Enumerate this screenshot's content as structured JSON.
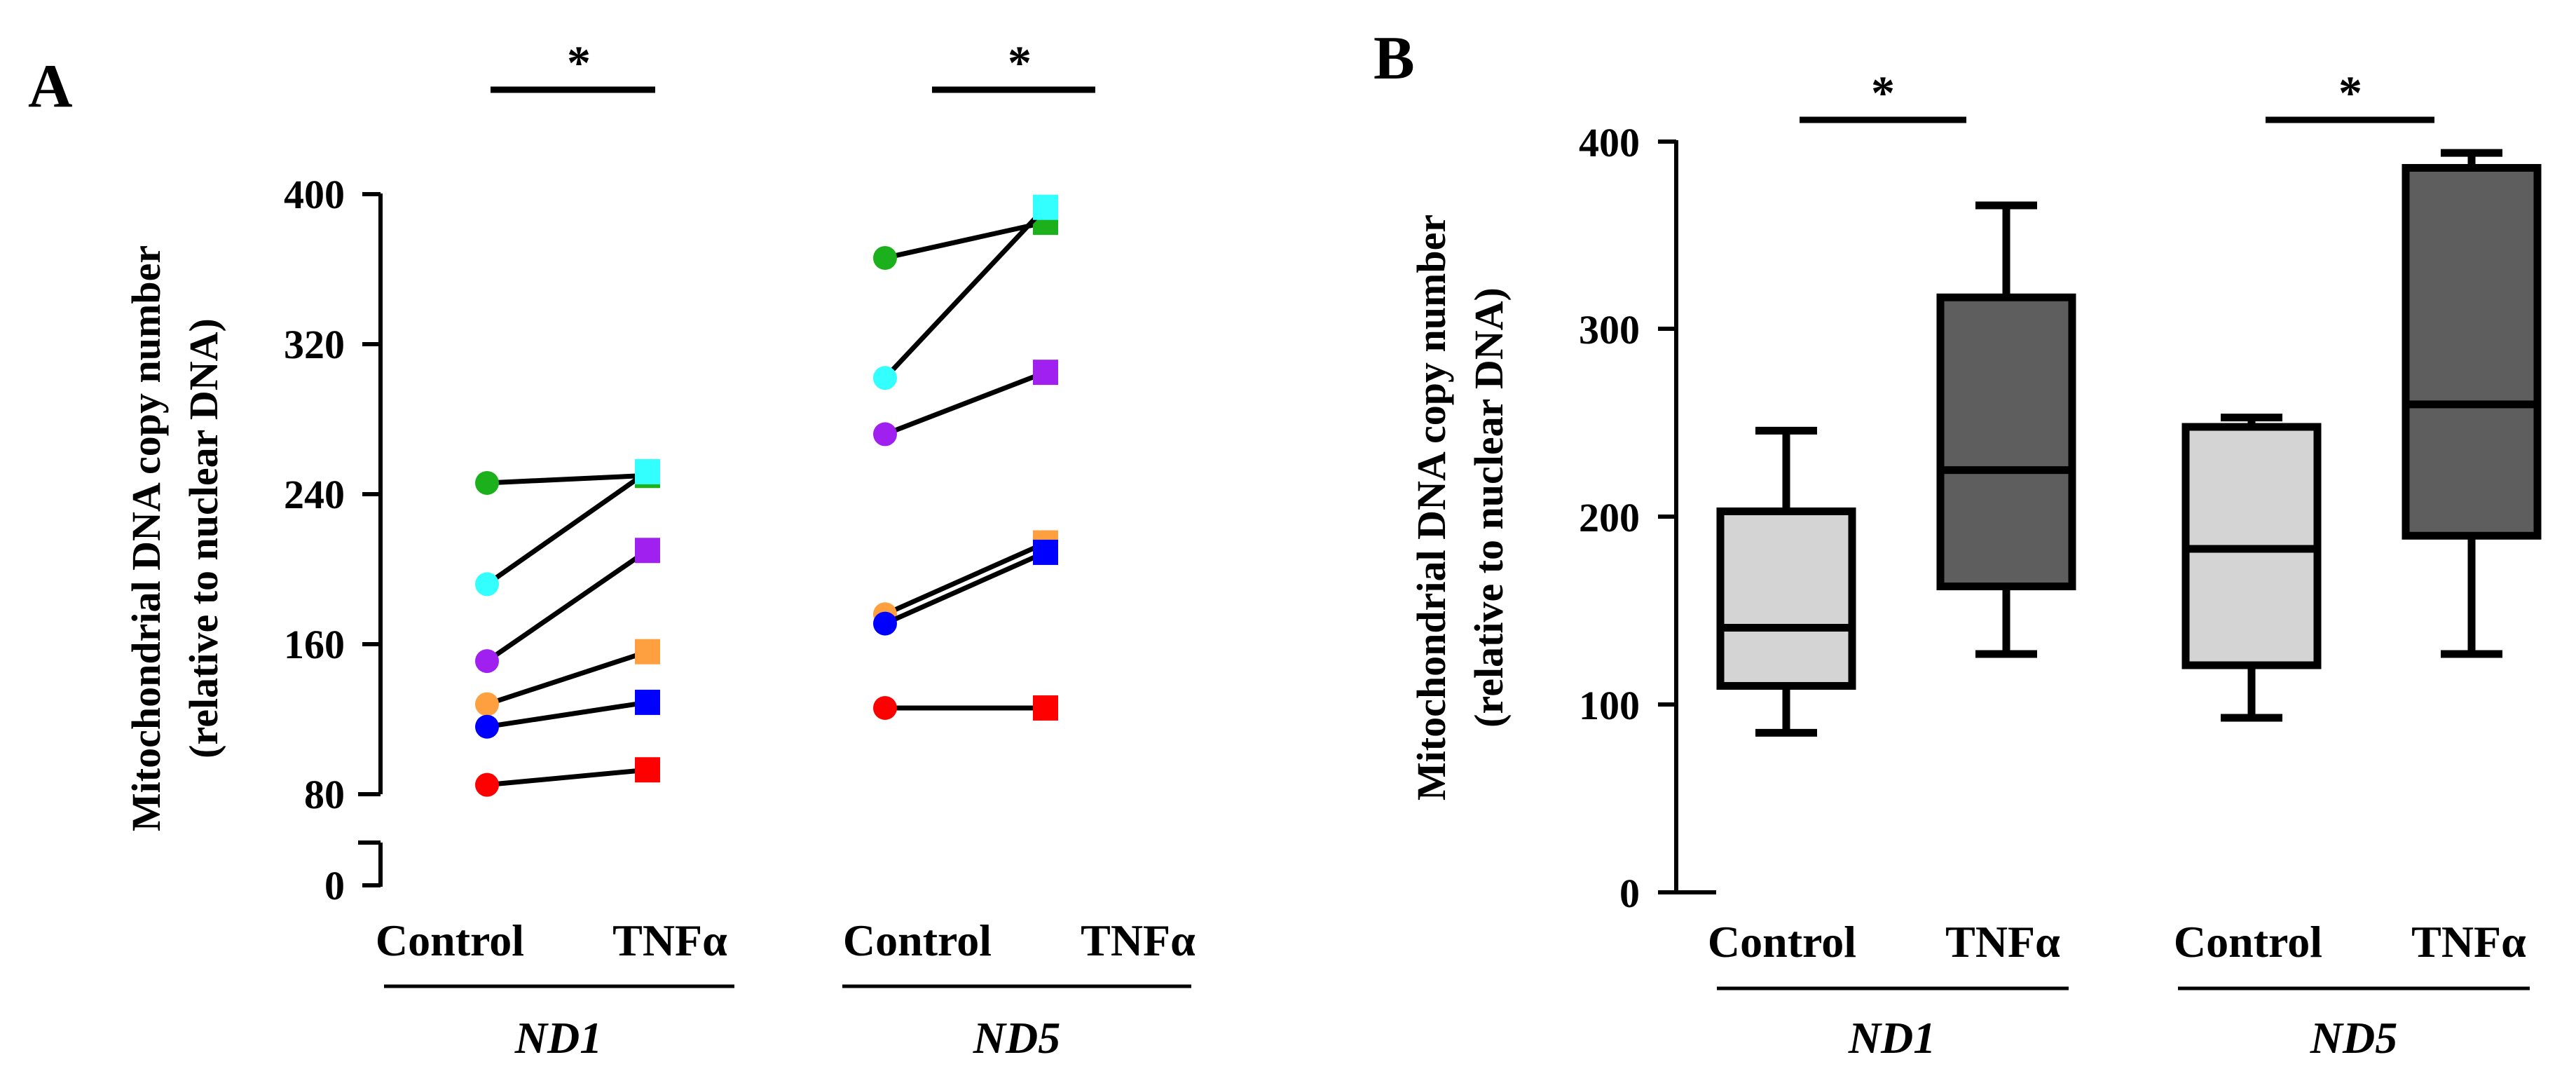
{
  "chart_data": [
    {
      "panel": "A",
      "type": "scatter",
      "subtype": "paired before-after",
      "ylabel_line1": "Mitochondrial DNA copy number",
      "ylabel_line2": "(relative to nuclear DNA)",
      "yticks": [
        "0",
        "80",
        "160",
        "240",
        "320",
        "400"
      ],
      "ylim": [
        80,
        400
      ],
      "y_axis_break": true,
      "groups": [
        {
          "name": "ND1",
          "conditions": [
            "Control",
            "TNFα"
          ],
          "significance": "*",
          "pairs": [
            {
              "color": "#1db01d",
              "control": 246,
              "tnf": 250
            },
            {
              "color": "#33ffff",
              "control": 192,
              "tnf": 252
            },
            {
              "color": "#a020f0",
              "control": 151,
              "tnf": 210
            },
            {
              "color": "#ffa040",
              "control": 128,
              "tnf": 156
            },
            {
              "color": "#0000ff",
              "control": 116,
              "tnf": 129
            },
            {
              "color": "#ff0000",
              "control": 85,
              "tnf": 93
            }
          ]
        },
        {
          "name": "ND5",
          "conditions": [
            "Control",
            "TNFα"
          ],
          "significance": "*",
          "pairs": [
            {
              "color": "#1db01d",
              "control": 366,
              "tnf": 385
            },
            {
              "color": "#33ffff",
              "control": 302,
              "tnf": 393
            },
            {
              "color": "#a020f0",
              "control": 272,
              "tnf": 305
            },
            {
              "color": "#ffa040",
              "control": 176,
              "tnf": 214
            },
            {
              "color": "#0000ff",
              "control": 171,
              "tnf": 209
            },
            {
              "color": "#ff0000",
              "control": 126,
              "tnf": 126
            }
          ]
        }
      ]
    },
    {
      "panel": "B",
      "type": "box",
      "ylabel_line1": "Mitochondrial DNA copy number",
      "ylabel_line2": "(relative to nuclear DNA)",
      "yticks": [
        "0",
        "100",
        "200",
        "300",
        "400"
      ],
      "ylim": [
        0,
        400
      ],
      "groups": [
        {
          "name": "ND1",
          "significance": "*",
          "boxes": [
            {
              "label": "Control",
              "fill": "#d4d4d4",
              "min": 85,
              "q1": 110,
              "median": 141,
              "q3": 203,
              "max": 246
            },
            {
              "label": "TNFα",
              "fill": "#5e5e5e",
              "min": 127,
              "q1": 163,
              "median": 225,
              "q3": 317,
              "max": 366
            }
          ]
        },
        {
          "name": "ND5",
          "significance": "*",
          "boxes": [
            {
              "label": "Control",
              "fill": "#d4d4d4",
              "min": 93,
              "q1": 121,
              "median": 183,
              "q3": 248,
              "max": 253
            },
            {
              "label": "TNFα",
              "fill": "#5e5e5e",
              "min": 127,
              "q1": 190,
              "median": 260,
              "q3": 386,
              "max": 394
            }
          ]
        }
      ]
    }
  ]
}
